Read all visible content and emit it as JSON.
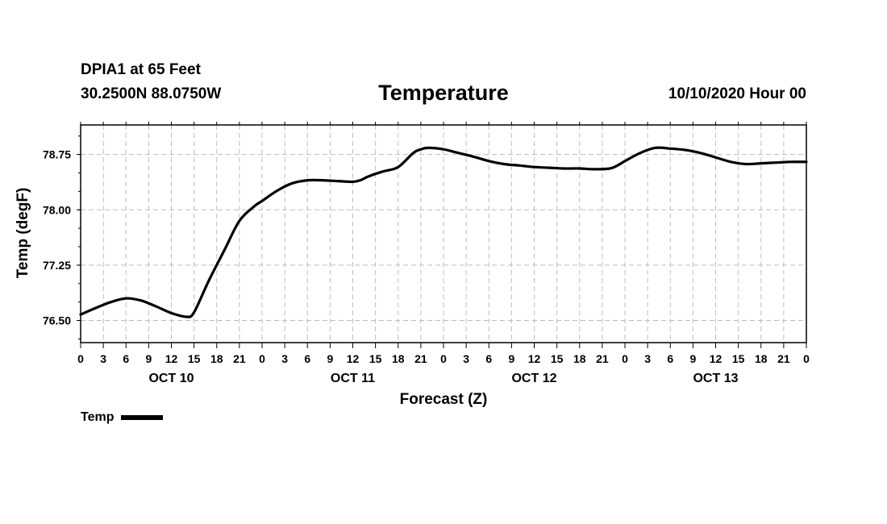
{
  "header": {
    "station": "DPIA1 at 65 Feet",
    "coords": "30.2500N 88.0750W",
    "title": "Temperature",
    "datetime": "10/10/2020 Hour 00"
  },
  "chart_data": {
    "type": "line",
    "title": "Temperature",
    "xlabel": "Forecast (Z)",
    "ylabel": "Temp (degF)",
    "xlim": [
      0,
      96
    ],
    "ylim": [
      76.2,
      79.15
    ],
    "yticks": [
      76.5,
      77.25,
      78.0,
      78.75
    ],
    "ytick_labels": [
      "76.50",
      "77.25",
      "78.00",
      "78.75"
    ],
    "x_tick_step_hours": 3,
    "x_tick_labels": [
      "0",
      "3",
      "6",
      "9",
      "12",
      "15",
      "18",
      "21",
      "0",
      "3",
      "6",
      "9",
      "12",
      "15",
      "18",
      "21",
      "0",
      "3",
      "6",
      "9",
      "12",
      "15",
      "18",
      "21",
      "0",
      "3",
      "6",
      "9",
      "12",
      "15",
      "18",
      "21",
      "0"
    ],
    "day_labels": [
      {
        "label": "OCT 10",
        "hour": 12
      },
      {
        "label": "OCT 11",
        "hour": 36
      },
      {
        "label": "OCT 12",
        "hour": 60
      },
      {
        "label": "OCT 13",
        "hour": 84
      }
    ],
    "grid": true,
    "legend_position": "bottom-left",
    "series": [
      {
        "name": "Temp",
        "color": "#000000",
        "x": [
          0,
          2,
          4,
          6,
          8,
          10,
          12,
          14,
          15,
          17,
          19,
          21,
          23,
          24,
          26,
          28,
          30,
          32,
          34,
          36,
          37,
          38,
          40,
          42,
          44,
          45,
          46,
          48,
          50,
          52,
          54,
          56,
          58,
          60,
          62,
          64,
          66,
          68,
          70,
          71,
          72,
          74,
          76,
          78,
          80,
          82,
          84,
          86,
          88,
          90,
          92,
          94,
          96
        ],
        "values": [
          76.58,
          76.67,
          76.75,
          76.8,
          76.77,
          76.69,
          76.6,
          76.55,
          76.61,
          77.05,
          77.45,
          77.85,
          78.05,
          78.12,
          78.26,
          78.36,
          78.4,
          78.4,
          78.39,
          78.38,
          78.4,
          78.45,
          78.52,
          78.58,
          78.77,
          78.82,
          78.84,
          78.82,
          78.77,
          78.72,
          78.66,
          78.62,
          78.6,
          78.58,
          78.57,
          78.56,
          78.56,
          78.55,
          78.56,
          78.6,
          78.66,
          78.77,
          78.84,
          78.83,
          78.81,
          78.77,
          78.71,
          78.65,
          78.62,
          78.63,
          78.64,
          78.65,
          78.65
        ]
      }
    ]
  },
  "legend": {
    "label": "Temp",
    "color": "#000000"
  }
}
